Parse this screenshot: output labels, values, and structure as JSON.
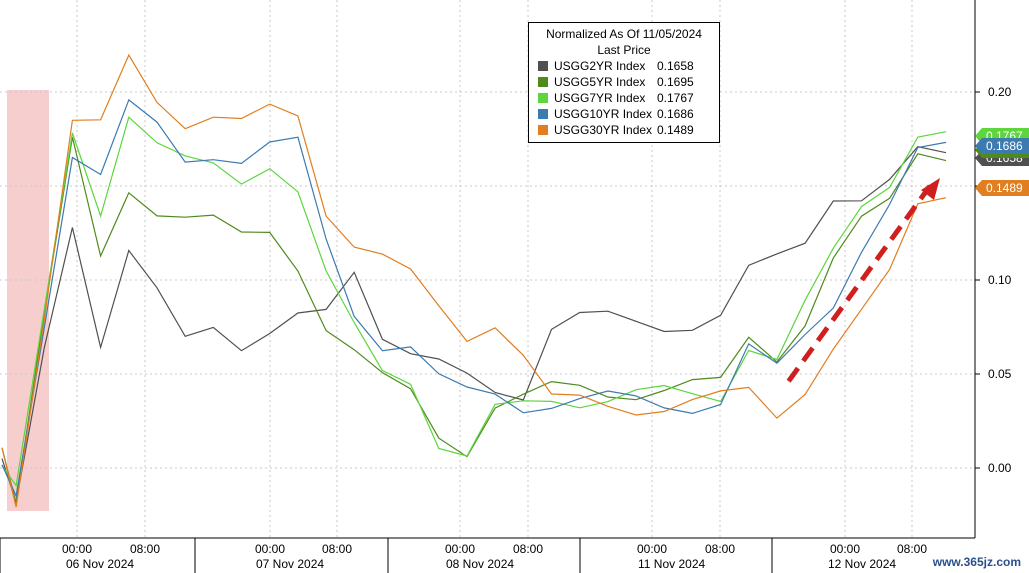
{
  "chart_data": {
    "type": "line",
    "legend": {
      "title_line1": "Normalized As Of 11/05/2024",
      "title_line2": "Last Price",
      "placement": "top-center"
    },
    "y_axis": {
      "ticks": [
        "0.20",
        "0.15",
        "0.10",
        "0.05",
        "0.00"
      ],
      "range": [
        -0.035,
        0.245
      ],
      "side": "right"
    },
    "x_axis": {
      "time_ticks": [
        "00:00",
        "08:00",
        "00:00",
        "08:00",
        "00:00",
        "08:00",
        "00:00",
        "08:00",
        "00:00",
        "08:00"
      ],
      "day_labels": [
        "06 Nov 2024",
        "07 Nov 2024",
        "08 Nov 2024",
        "11 Nov 2024",
        "12 Nov 2024"
      ]
    },
    "grid": true,
    "highlight": "election-night band at start (shaded)",
    "annotation": "red dashed arrow, rising yields on 12 Nov",
    "series": [
      {
        "name": "USGG2YR Index",
        "last": "0.1658",
        "color": "#505050",
        "points": [
          [
            0,
            0.005
          ],
          [
            1,
            -0.015
          ],
          [
            3,
            0.07
          ],
          [
            5,
            0.13
          ],
          [
            7,
            0.06
          ],
          [
            9,
            0.11
          ],
          [
            11,
            0.095
          ],
          [
            13,
            0.075
          ],
          [
            15,
            0.08
          ],
          [
            17,
            0.062
          ],
          [
            19,
            0.066
          ],
          [
            21,
            0.078
          ],
          [
            23,
            0.086
          ],
          [
            25,
            0.11
          ],
          [
            27,
            0.072
          ],
          [
            29,
            0.058
          ],
          [
            31,
            0.052
          ],
          [
            33,
            0.048
          ],
          [
            35,
            0.044
          ],
          [
            37,
            0.042
          ],
          [
            39,
            0.075
          ],
          [
            41,
            0.078
          ],
          [
            43,
            0.078
          ],
          [
            45,
            0.078
          ],
          [
            47,
            0.078
          ],
          [
            49,
            0.078
          ],
          [
            51,
            0.08
          ],
          [
            53,
            0.102
          ],
          [
            55,
            0.11
          ],
          [
            57,
            0.122
          ],
          [
            59,
            0.148
          ],
          [
            61,
            0.145
          ],
          [
            63,
            0.15
          ],
          [
            65,
            0.165
          ],
          [
            67,
            0.166
          ]
        ]
      },
      {
        "name": "USGG5YR Index",
        "last": "0.1695",
        "color": "#4f8a1c",
        "points": [
          [
            0,
            0.005
          ],
          [
            1,
            -0.015
          ],
          [
            3,
            0.08
          ],
          [
            5,
            0.17
          ],
          [
            7,
            0.11
          ],
          [
            9,
            0.15
          ],
          [
            11,
            0.14
          ],
          [
            13,
            0.135
          ],
          [
            15,
            0.13
          ],
          [
            17,
            0.12
          ],
          [
            19,
            0.125
          ],
          [
            21,
            0.11
          ],
          [
            23,
            0.078
          ],
          [
            25,
            0.062
          ],
          [
            27,
            0.045
          ],
          [
            29,
            0.038
          ],
          [
            31,
            0.018
          ],
          [
            33,
            0.012
          ],
          [
            35,
            0.035
          ],
          [
            37,
            0.036
          ],
          [
            39,
            0.04
          ],
          [
            41,
            0.042
          ],
          [
            43,
            0.042
          ],
          [
            45,
            0.042
          ],
          [
            47,
            0.042
          ],
          [
            49,
            0.042
          ],
          [
            51,
            0.043
          ],
          [
            53,
            0.07
          ],
          [
            55,
            0.062
          ],
          [
            57,
            0.08
          ],
          [
            59,
            0.11
          ],
          [
            61,
            0.128
          ],
          [
            63,
            0.14
          ],
          [
            65,
            0.17
          ],
          [
            67,
            0.1695
          ]
        ]
      },
      {
        "name": "USGG7YR Index",
        "last": "0.1767",
        "color": "#5cd63c",
        "points": [
          [
            0,
            0.005
          ],
          [
            1,
            -0.015
          ],
          [
            3,
            0.08
          ],
          [
            5,
            0.18
          ],
          [
            7,
            0.14
          ],
          [
            9,
            0.19
          ],
          [
            11,
            0.17
          ],
          [
            13,
            0.16
          ],
          [
            15,
            0.16
          ],
          [
            17,
            0.155
          ],
          [
            19,
            0.165
          ],
          [
            21,
            0.148
          ],
          [
            23,
            0.1
          ],
          [
            25,
            0.072
          ],
          [
            27,
            0.052
          ],
          [
            29,
            0.05
          ],
          [
            31,
            0.015
          ],
          [
            33,
            0.005
          ],
          [
            35,
            0.028
          ],
          [
            37,
            0.032
          ],
          [
            39,
            0.038
          ],
          [
            41,
            0.038
          ],
          [
            43,
            0.038
          ],
          [
            45,
            0.038
          ],
          [
            47,
            0.038
          ],
          [
            49,
            0.038
          ],
          [
            51,
            0.04
          ],
          [
            53,
            0.068
          ],
          [
            55,
            0.058
          ],
          [
            57,
            0.084
          ],
          [
            59,
            0.112
          ],
          [
            61,
            0.14
          ],
          [
            63,
            0.155
          ],
          [
            65,
            0.18
          ],
          [
            67,
            0.1767
          ]
        ]
      },
      {
        "name": "USGG10YR Index",
        "last": "0.1686",
        "color": "#3c7ab0",
        "points": [
          [
            0,
            0.005
          ],
          [
            1,
            -0.015
          ],
          [
            3,
            0.08
          ],
          [
            5,
            0.17
          ],
          [
            7,
            0.155
          ],
          [
            9,
            0.19
          ],
          [
            11,
            0.18
          ],
          [
            13,
            0.165
          ],
          [
            15,
            0.17
          ],
          [
            17,
            0.165
          ],
          [
            19,
            0.17
          ],
          [
            21,
            0.17
          ],
          [
            23,
            0.12
          ],
          [
            25,
            0.085
          ],
          [
            27,
            0.068
          ],
          [
            29,
            0.065
          ],
          [
            31,
            0.045
          ],
          [
            33,
            0.038
          ],
          [
            35,
            0.04
          ],
          [
            37,
            0.035
          ],
          [
            39,
            0.036
          ],
          [
            41,
            0.035
          ],
          [
            43,
            0.035
          ],
          [
            45,
            0.035
          ],
          [
            47,
            0.035
          ],
          [
            49,
            0.035
          ],
          [
            51,
            0.036
          ],
          [
            53,
            0.062
          ],
          [
            55,
            0.05
          ],
          [
            57,
            0.07
          ],
          [
            59,
            0.09
          ],
          [
            61,
            0.12
          ],
          [
            63,
            0.14
          ],
          [
            65,
            0.165
          ],
          [
            67,
            0.1686
          ]
        ]
      },
      {
        "name": "USGG30YR Index",
        "last": "0.1489",
        "color": "#e07e20",
        "points": [
          [
            0,
            0.005
          ],
          [
            1,
            -0.015
          ],
          [
            3,
            0.08
          ],
          [
            5,
            0.18
          ],
          [
            7,
            0.18
          ],
          [
            9,
            0.22
          ],
          [
            11,
            0.2
          ],
          [
            13,
            0.185
          ],
          [
            15,
            0.185
          ],
          [
            17,
            0.18
          ],
          [
            19,
            0.19
          ],
          [
            21,
            0.19
          ],
          [
            23,
            0.14
          ],
          [
            25,
            0.12
          ],
          [
            27,
            0.11
          ],
          [
            29,
            0.1
          ],
          [
            31,
            0.085
          ],
          [
            33,
            0.072
          ],
          [
            35,
            0.08
          ],
          [
            37,
            0.06
          ],
          [
            39,
            0.034
          ],
          [
            41,
            0.034
          ],
          [
            43,
            0.034
          ],
          [
            45,
            0.034
          ],
          [
            47,
            0.034
          ],
          [
            49,
            0.034
          ],
          [
            51,
            0.035
          ],
          [
            53,
            0.04
          ],
          [
            55,
            0.03
          ],
          [
            57,
            0.045
          ],
          [
            59,
            0.065
          ],
          [
            61,
            0.08
          ],
          [
            63,
            0.1
          ],
          [
            65,
            0.14
          ],
          [
            67,
            0.1489
          ]
        ]
      }
    ]
  },
  "watermark": "www.365jz.com"
}
